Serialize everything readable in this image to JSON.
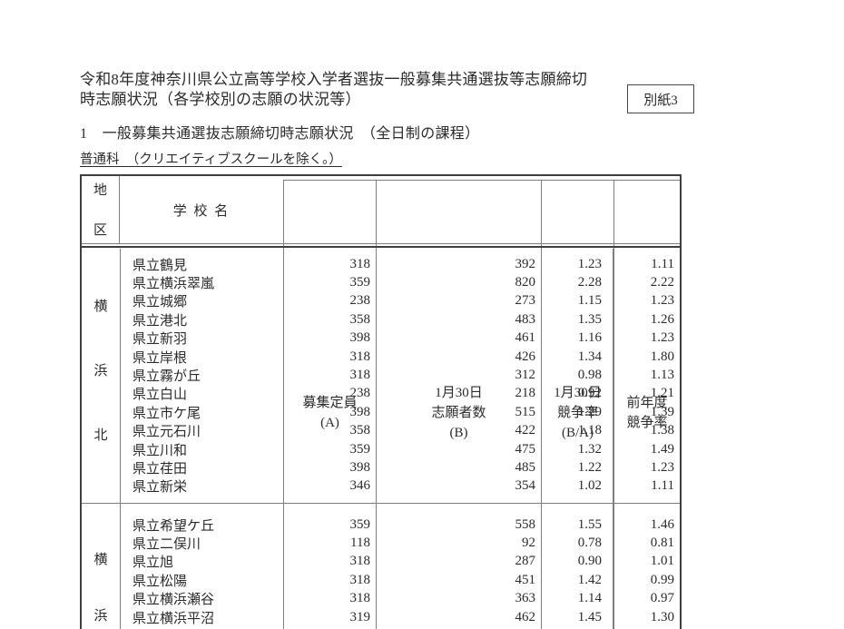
{
  "page": {
    "title_line1": "令和8年度神奈川県公立高等学校入学者選抜一般募集共通選抜等志願締切",
    "title_line2": "時志願状況（各学校別の志願の状況等）",
    "attachment_label": "別紙3",
    "section_heading": "1　一般募集共通選抜志願締切時志願状況　（全日制の課程）",
    "course_note": "普通科　（クリエイティブスクールを除く。）"
  },
  "colors": {
    "text": "#2b2b2b",
    "border_dark": "#3f3f3f",
    "border_light": "#7f7f7f",
    "background": "#ffffff"
  },
  "table": {
    "header": {
      "district": [
        "地",
        "区"
      ],
      "school": "学 校 名",
      "capacity": [
        "募集定員",
        "(A)"
      ],
      "applicants": [
        "1月30日",
        "志願者数",
        "(B)"
      ],
      "ratio": [
        "1月30日",
        "競争率",
        "(B/A)"
      ],
      "prev_ratio": [
        "前年度",
        "競争率"
      ]
    },
    "sections": [
      {
        "district_chars": [
          "横",
          "浜",
          "北"
        ],
        "rows": [
          {
            "school": "県立鶴見",
            "capacity": "318",
            "applicants": "392",
            "ratio": "1.23",
            "prev_ratio": "1.11"
          },
          {
            "school": "県立横浜翠嵐",
            "capacity": "359",
            "applicants": "820",
            "ratio": "2.28",
            "prev_ratio": "2.22"
          },
          {
            "school": "県立城郷",
            "capacity": "238",
            "applicants": "273",
            "ratio": "1.15",
            "prev_ratio": "1.23"
          },
          {
            "school": "県立港北",
            "capacity": "358",
            "applicants": "483",
            "ratio": "1.35",
            "prev_ratio": "1.26"
          },
          {
            "school": "県立新羽",
            "capacity": "398",
            "applicants": "461",
            "ratio": "1.16",
            "prev_ratio": "1.23"
          },
          {
            "school": "県立岸根",
            "capacity": "318",
            "applicants": "426",
            "ratio": "1.34",
            "prev_ratio": "1.80"
          },
          {
            "school": "県立霧が丘",
            "capacity": "318",
            "applicants": "312",
            "ratio": "0.98",
            "prev_ratio": "1.13"
          },
          {
            "school": "県立白山",
            "capacity": "238",
            "applicants": "218",
            "ratio": "0.92",
            "prev_ratio": "1.21"
          },
          {
            "school": "県立市ケ尾",
            "capacity": "398",
            "applicants": "515",
            "ratio": "1.29",
            "prev_ratio": "1.39"
          },
          {
            "school": "県立元石川",
            "capacity": "358",
            "applicants": "422",
            "ratio": "1.18",
            "prev_ratio": "1.38"
          },
          {
            "school": "県立川和",
            "capacity": "359",
            "applicants": "475",
            "ratio": "1.32",
            "prev_ratio": "1.49"
          },
          {
            "school": "県立荏田",
            "capacity": "398",
            "applicants": "485",
            "ratio": "1.22",
            "prev_ratio": "1.23"
          },
          {
            "school": "県立新栄",
            "capacity": "346",
            "applicants": "354",
            "ratio": "1.02",
            "prev_ratio": "1.11"
          }
        ]
      },
      {
        "district_chars": [
          "横",
          "浜"
        ],
        "rows": [
          {
            "school": "県立希望ケ丘",
            "capacity": "359",
            "applicants": "558",
            "ratio": "1.55",
            "prev_ratio": "1.46"
          },
          {
            "school": "県立二俣川",
            "capacity": "118",
            "applicants": "92",
            "ratio": "0.78",
            "prev_ratio": "0.81"
          },
          {
            "school": "県立旭",
            "capacity": "318",
            "applicants": "287",
            "ratio": "0.90",
            "prev_ratio": "1.01"
          },
          {
            "school": "県立松陽",
            "capacity": "318",
            "applicants": "451",
            "ratio": "1.42",
            "prev_ratio": "0.99"
          },
          {
            "school": "県立横浜瀬谷",
            "capacity": "318",
            "applicants": "363",
            "ratio": "1.14",
            "prev_ratio": "0.97"
          },
          {
            "school": "県立横浜平沼",
            "capacity": "319",
            "applicants": "462",
            "ratio": "1.45",
            "prev_ratio": "1.30"
          }
        ]
      }
    ]
  }
}
